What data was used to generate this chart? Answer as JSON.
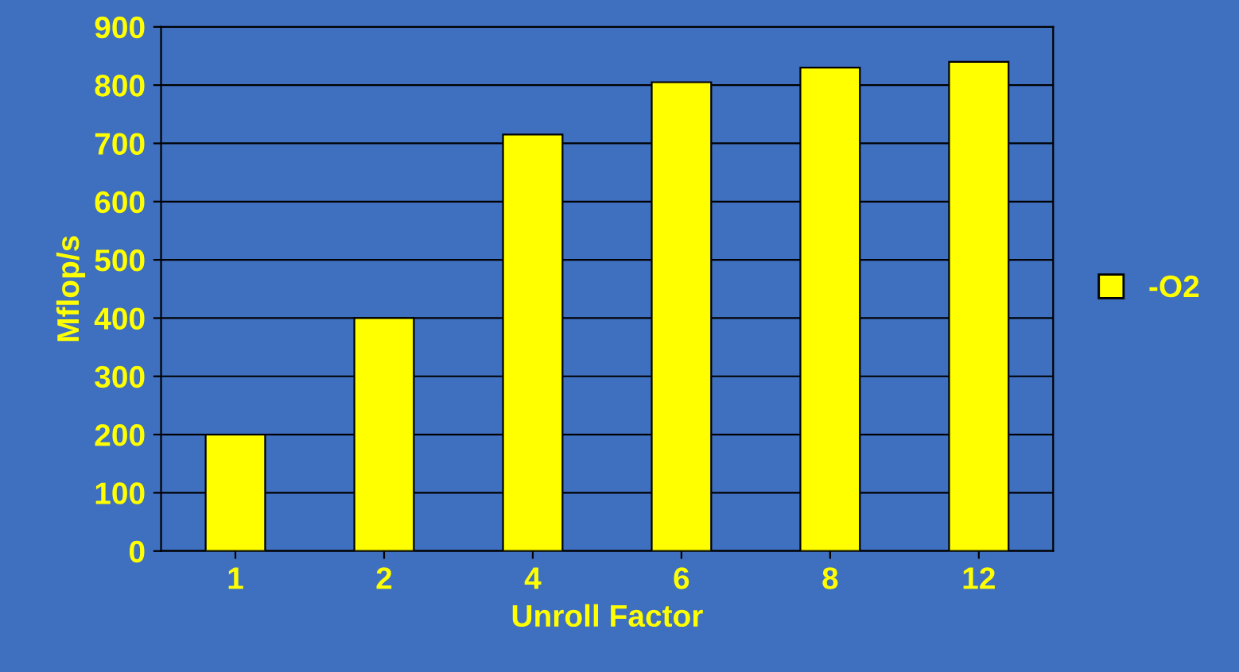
{
  "chart_data": {
    "type": "bar",
    "xlabel": "Unroll Factor",
    "ylabel": "Mflop/s",
    "categories": [
      "1",
      "2",
      "4",
      "6",
      "8",
      "12"
    ],
    "series": [
      {
        "name": "-O2",
        "color": "#ffff00",
        "values": [
          200,
          400,
          715,
          805,
          830,
          840
        ]
      }
    ],
    "ylim": [
      0,
      900
    ],
    "yticks": [
      0,
      100,
      200,
      300,
      400,
      500,
      600,
      700,
      800,
      900
    ],
    "grid": "y",
    "legend": "right"
  }
}
